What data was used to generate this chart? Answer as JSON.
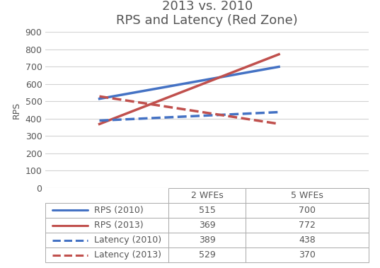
{
  "title_line1": "2013 vs. 2010",
  "title_line2": "RPS and Latency (Red Zone)",
  "x_labels": [
    "2 WFEs",
    "5 WFEs"
  ],
  "x_positions": [
    1,
    2
  ],
  "series": {
    "RPS (2010)": {
      "values": [
        515,
        700
      ],
      "color": "#4472C4",
      "linestyle": "solid",
      "linewidth": 2.5
    },
    "RPS (2013)": {
      "values": [
        369,
        772
      ],
      "color": "#C0504D",
      "linestyle": "solid",
      "linewidth": 2.5
    },
    "Latency (2010)": {
      "values": [
        389,
        438
      ],
      "color": "#4472C4",
      "linestyle": "dashed",
      "linewidth": 2.5
    },
    "Latency (2013)": {
      "values": [
        529,
        370
      ],
      "color": "#C0504D",
      "linestyle": "dashed",
      "linewidth": 2.5
    }
  },
  "series_order": [
    "RPS (2010)",
    "RPS (2013)",
    "Latency (2010)",
    "Latency (2013)"
  ],
  "ylim": [
    0,
    900
  ],
  "yticks": [
    0,
    100,
    200,
    300,
    400,
    500,
    600,
    700,
    800,
    900
  ],
  "ylabel": "RPS",
  "table_rows": {
    "RPS (2010)": [
      "515",
      "700"
    ],
    "RPS (2013)": [
      "369",
      "772"
    ],
    "Latency (2010)": [
      "389",
      "438"
    ],
    "Latency (2013)": [
      "529",
      "370"
    ]
  },
  "table_col_headers": [
    "2 WFEs",
    "5 WFEs"
  ],
  "background_color": "#FFFFFF",
  "grid_color": "#D3D3D3",
  "table_edge_color": "#AAAAAA",
  "text_color": "#555555",
  "title_fontsize": 13,
  "ylabel_fontsize": 9,
  "tick_fontsize": 9,
  "table_fontsize": 9
}
